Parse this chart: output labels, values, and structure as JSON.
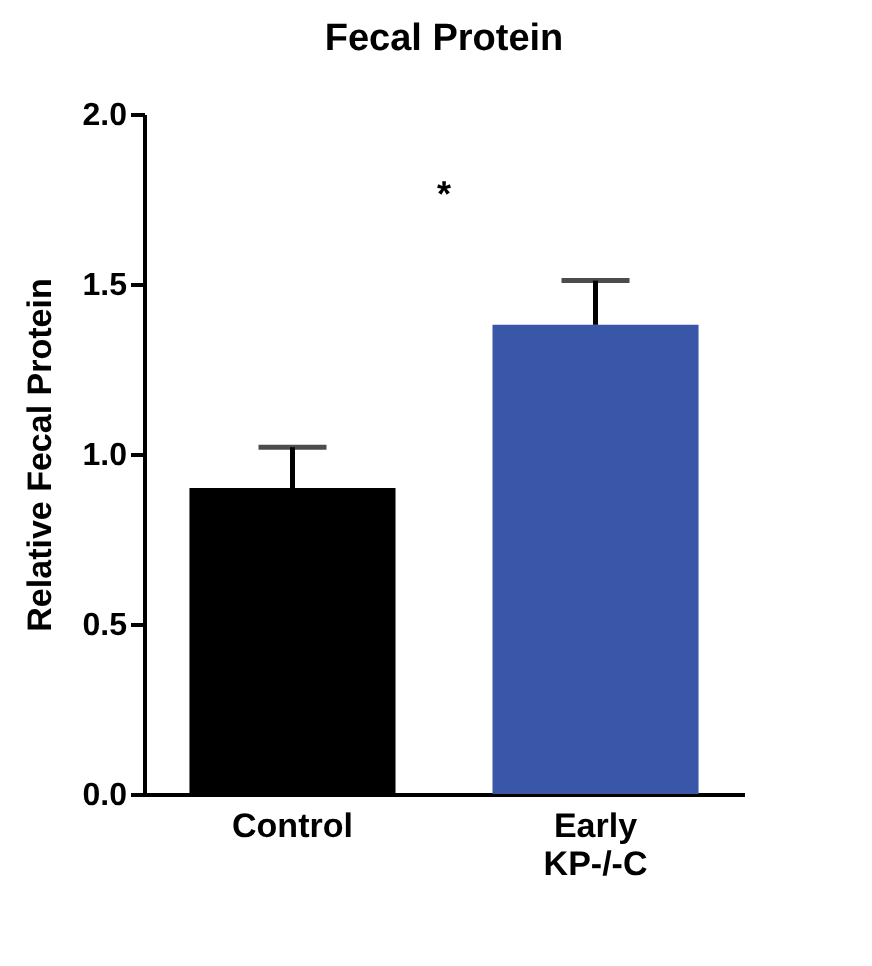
{
  "chart_data": {
    "type": "bar",
    "title": "Fecal Protein",
    "ylabel": "Relative Fecal Protein",
    "categories": [
      "Control",
      "Early KP-/-C"
    ],
    "values": [
      0.9,
      1.38
    ],
    "colors": [
      "#000000",
      "#3a56a8"
    ],
    "errors": [
      [
        0.9,
        1.02
      ],
      [
        1.38,
        1.51
      ]
    ],
    "ylim": [
      0,
      2
    ],
    "yticks": [
      {
        "value": 0,
        "label": "0.0"
      },
      {
        "value": 0.5,
        "label": "0.5"
      },
      {
        "value": 1,
        "label": "1.0"
      },
      {
        "value": 1.5,
        "label": "1.5"
      },
      {
        "value": 2,
        "label": "2.0"
      }
    ],
    "annotations": [
      "*"
    ],
    "grid": false,
    "legend": false
  }
}
